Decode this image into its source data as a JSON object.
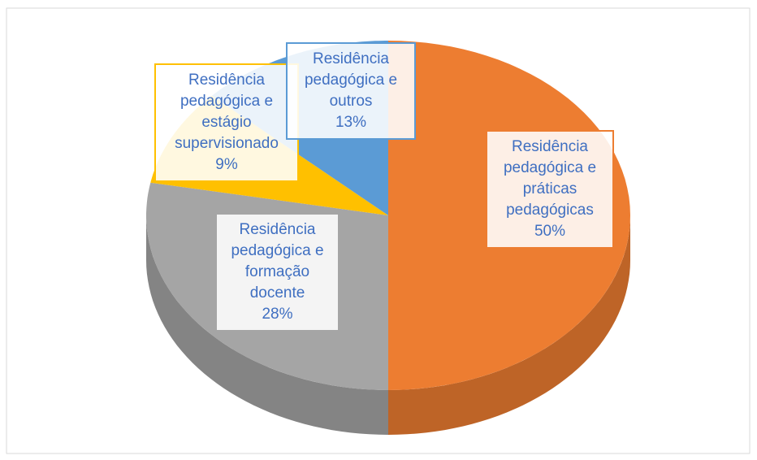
{
  "chart_data": {
    "type": "pie",
    "categories": [
      "Residência pedagógica e práticas pedagógicas",
      "Residência pedagógica e formação docente",
      "Residência pedagógica e estágio supervisionado",
      "Residência pedagógica e outros"
    ],
    "values": [
      50,
      28,
      9,
      13
    ],
    "value_labels": [
      "50%",
      "28%",
      "9%",
      "13%"
    ],
    "colors": [
      "#ED7D31",
      "#A5A5A5",
      "#FFC000",
      "#5B9BD5"
    ]
  }
}
